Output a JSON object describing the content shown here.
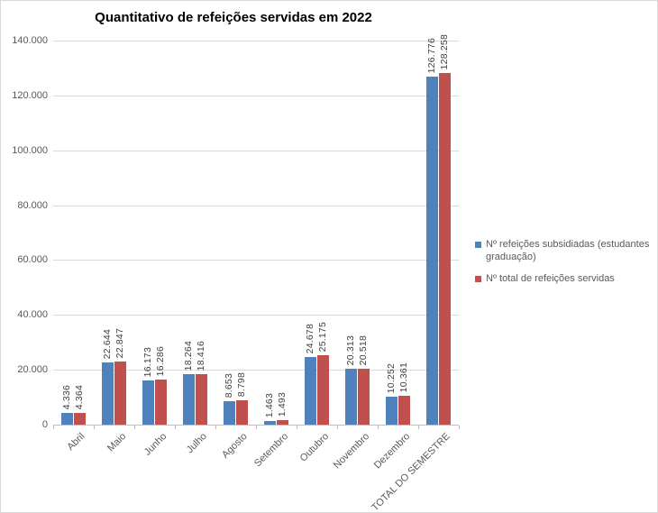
{
  "chart_data": {
    "type": "bar",
    "title": "Quantitativo de refeições servidas em 2022",
    "categories": [
      "Abril",
      "Maio",
      "Junho",
      "Julho",
      "Agosto",
      "Setembro",
      "Outubro",
      "Novembro",
      "Dezembro",
      "TOTAL DO SEMESTRE"
    ],
    "series": [
      {
        "name": "Nº refeições subsidiadas (estudantes graduação)",
        "color": "#4f81bd",
        "values": [
          4336,
          22644,
          16173,
          18264,
          8653,
          1463,
          24678,
          20313,
          10252,
          126776
        ],
        "labels": [
          "4.336",
          "22.644",
          "16.173",
          "18.264",
          "8.653",
          "1.463",
          "24.678",
          "20.313",
          "10.252",
          "126.776"
        ]
      },
      {
        "name": "Nº total de refeições servidas",
        "color": "#c0504d",
        "values": [
          4364,
          22847,
          16286,
          18416,
          8798,
          1493,
          25175,
          20518,
          10361,
          128258
        ],
        "labels": [
          "4.364",
          "22.847",
          "16.286",
          "18.416",
          "8.798",
          "1.493",
          "25.175",
          "20.518",
          "10.361",
          "128.258"
        ]
      }
    ],
    "y_axis": {
      "min": 0,
      "max": 140000,
      "step": 20000,
      "tick_labels": [
        "0",
        "20.000",
        "40.000",
        "60.000",
        "80.000",
        "100.000",
        "120.000",
        "140.000"
      ]
    },
    "grid": true,
    "legend_position": "right",
    "colors": {
      "gridline": "#d9d9d9",
      "axis_line": "#bfbfbf",
      "axis_text": "#595959",
      "data_label_text": "#404040",
      "title_text": "#000000",
      "background": "#ffffff",
      "border": "#d9d9d9"
    }
  }
}
